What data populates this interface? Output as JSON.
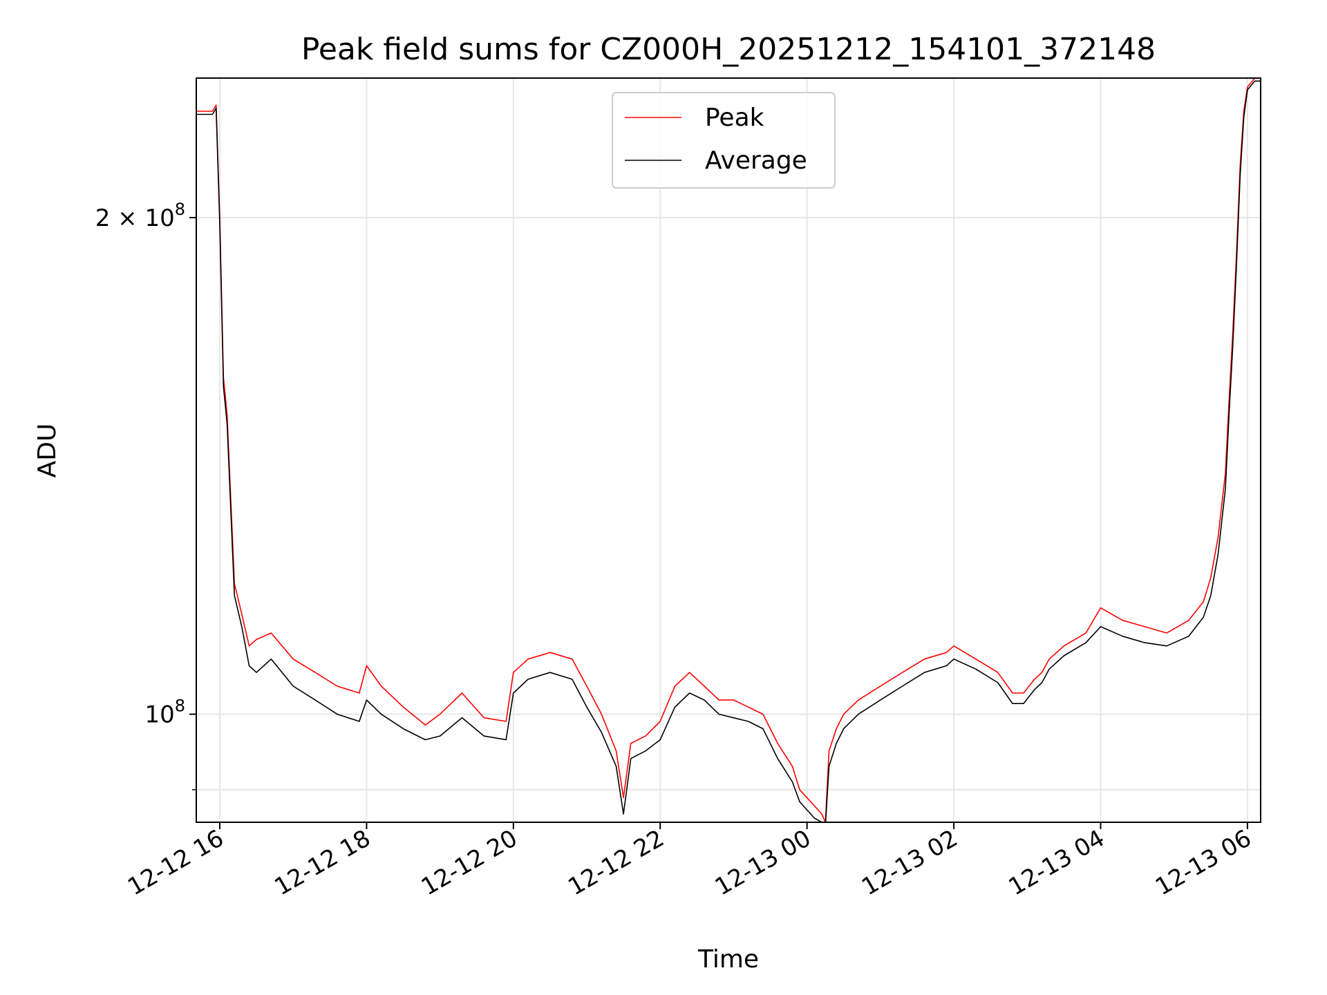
{
  "chart_data": {
    "type": "line",
    "title": "Peak field sums for CZ000H_20251212_154101_372148",
    "xlabel": "Time",
    "ylabel": "ADU",
    "yscale": "log",
    "ylim": [
      86000000,
      243000000
    ],
    "xlim_hours_from_2025_12_12_16_00": [
      -0.32,
      14.18
    ],
    "x_ticks": [
      {
        "label": "12-12 16",
        "hour": 0
      },
      {
        "label": "12-12 18",
        "hour": 2
      },
      {
        "label": "12-12 20",
        "hour": 4
      },
      {
        "label": "12-12 22",
        "hour": 6
      },
      {
        "label": "12-13 00",
        "hour": 8
      },
      {
        "label": "12-13 02",
        "hour": 10
      },
      {
        "label": "12-13 04",
        "hour": 12
      },
      {
        "label": "12-13 06",
        "hour": 14
      }
    ],
    "y_ticks": [
      {
        "base": "2",
        "times": "×",
        "mant": "10",
        "exp": "8",
        "value": 200000000
      },
      {
        "base": "",
        "times": "",
        "mant": "10",
        "exp": "8",
        "value": 100000000
      }
    ],
    "y_minor_gridlines": [
      90000000
    ],
    "grid": true,
    "legend_position": "upper center",
    "series": [
      {
        "name": "Peak",
        "color": "#ff0000",
        "x_hours": [
          -0.32,
          -0.1,
          -0.05,
          0.0,
          0.05,
          0.1,
          0.15,
          0.2,
          0.3,
          0.4,
          0.5,
          0.7,
          1.0,
          1.3,
          1.6,
          1.9,
          2.0,
          2.2,
          2.5,
          2.8,
          3.0,
          3.3,
          3.6,
          3.9,
          4.0,
          4.2,
          4.5,
          4.8,
          5.0,
          5.2,
          5.4,
          5.5,
          5.6,
          5.8,
          6.0,
          6.2,
          6.4,
          6.6,
          6.8,
          7.0,
          7.2,
          7.4,
          7.6,
          7.8,
          7.9,
          8.0,
          8.1,
          8.2,
          8.25,
          8.3,
          8.4,
          8.5,
          8.7,
          9.0,
          9.3,
          9.6,
          9.9,
          10.0,
          10.3,
          10.6,
          10.8,
          10.95,
          11.1,
          11.2,
          11.3,
          11.5,
          11.8,
          12.0,
          12.3,
          12.6,
          12.9,
          13.2,
          13.4,
          13.5,
          13.6,
          13.7,
          13.75,
          13.8,
          13.85,
          13.9,
          13.95,
          14.0,
          14.1,
          14.18
        ],
        "values": [
          232000000,
          232000000,
          234000000,
          200000000,
          160000000,
          152000000,
          135000000,
          120000000,
          115000000,
          110000000,
          111000000,
          112000000,
          108000000,
          106000000,
          104000000,
          103000000,
          107000000,
          104000000,
          101000000,
          98500000,
          100000000,
          103000000,
          99500000,
          99000000,
          106000000,
          108000000,
          109000000,
          108000000,
          104000000,
          100000000,
          95000000,
          89000000,
          96000000,
          97000000,
          99000000,
          104000000,
          106000000,
          104000000,
          102000000,
          102000000,
          101000000,
          100000000,
          96000000,
          93000000,
          90000000,
          89000000,
          88000000,
          87000000,
          86000000,
          95000000,
          98000000,
          100000000,
          102000000,
          104000000,
          106000000,
          108000000,
          109000000,
          110000000,
          108000000,
          106000000,
          103000000,
          103000000,
          105000000,
          106000000,
          108000000,
          110000000,
          112000000,
          116000000,
          114000000,
          113000000,
          112000000,
          114000000,
          117000000,
          121000000,
          128000000,
          140000000,
          155000000,
          170000000,
          190000000,
          215000000,
          232000000,
          240000000,
          243000000,
          243000000
        ]
      },
      {
        "name": "Average",
        "color": "#000000",
        "x_hours": [
          -0.32,
          -0.1,
          -0.05,
          0.0,
          0.05,
          0.1,
          0.15,
          0.2,
          0.3,
          0.4,
          0.5,
          0.7,
          1.0,
          1.3,
          1.6,
          1.9,
          2.0,
          2.2,
          2.5,
          2.8,
          3.0,
          3.3,
          3.6,
          3.9,
          4.0,
          4.2,
          4.5,
          4.8,
          5.0,
          5.2,
          5.4,
          5.5,
          5.6,
          5.8,
          6.0,
          6.2,
          6.4,
          6.6,
          6.8,
          7.0,
          7.2,
          7.4,
          7.6,
          7.8,
          7.9,
          8.0,
          8.1,
          8.2,
          8.25,
          8.3,
          8.4,
          8.5,
          8.7,
          9.0,
          9.3,
          9.6,
          9.9,
          10.0,
          10.3,
          10.6,
          10.8,
          10.95,
          11.1,
          11.2,
          11.3,
          11.5,
          11.8,
          12.0,
          12.3,
          12.6,
          12.9,
          13.2,
          13.4,
          13.5,
          13.6,
          13.7,
          13.75,
          13.8,
          13.85,
          13.9,
          13.95,
          14.0,
          14.1,
          14.18
        ],
        "values": [
          231000000,
          231000000,
          233000000,
          198000000,
          158000000,
          150000000,
          133000000,
          118000000,
          113000000,
          107000000,
          106000000,
          108000000,
          104000000,
          102000000,
          100000000,
          99000000,
          102000000,
          100000000,
          98000000,
          96500000,
          97000000,
          99500000,
          97000000,
          96500000,
          103000000,
          105000000,
          106000000,
          105000000,
          101000000,
          97500000,
          93000000,
          87000000,
          94000000,
          95000000,
          96500000,
          101000000,
          103000000,
          102000000,
          100000000,
          99500000,
          99000000,
          98000000,
          94000000,
          91000000,
          88500000,
          87500000,
          86500000,
          86000000,
          85500000,
          93000000,
          96000000,
          98000000,
          100000000,
          102000000,
          104000000,
          106000000,
          107000000,
          108000000,
          106500000,
          104500000,
          101500000,
          101500000,
          103500000,
          104500000,
          106500000,
          108500000,
          110500000,
          113000000,
          111500000,
          110500000,
          110000000,
          111500000,
          114500000,
          118000000,
          125000000,
          137000000,
          152000000,
          167000000,
          187000000,
          212000000,
          230000000,
          239000000,
          242000000,
          242000000
        ]
      }
    ]
  }
}
